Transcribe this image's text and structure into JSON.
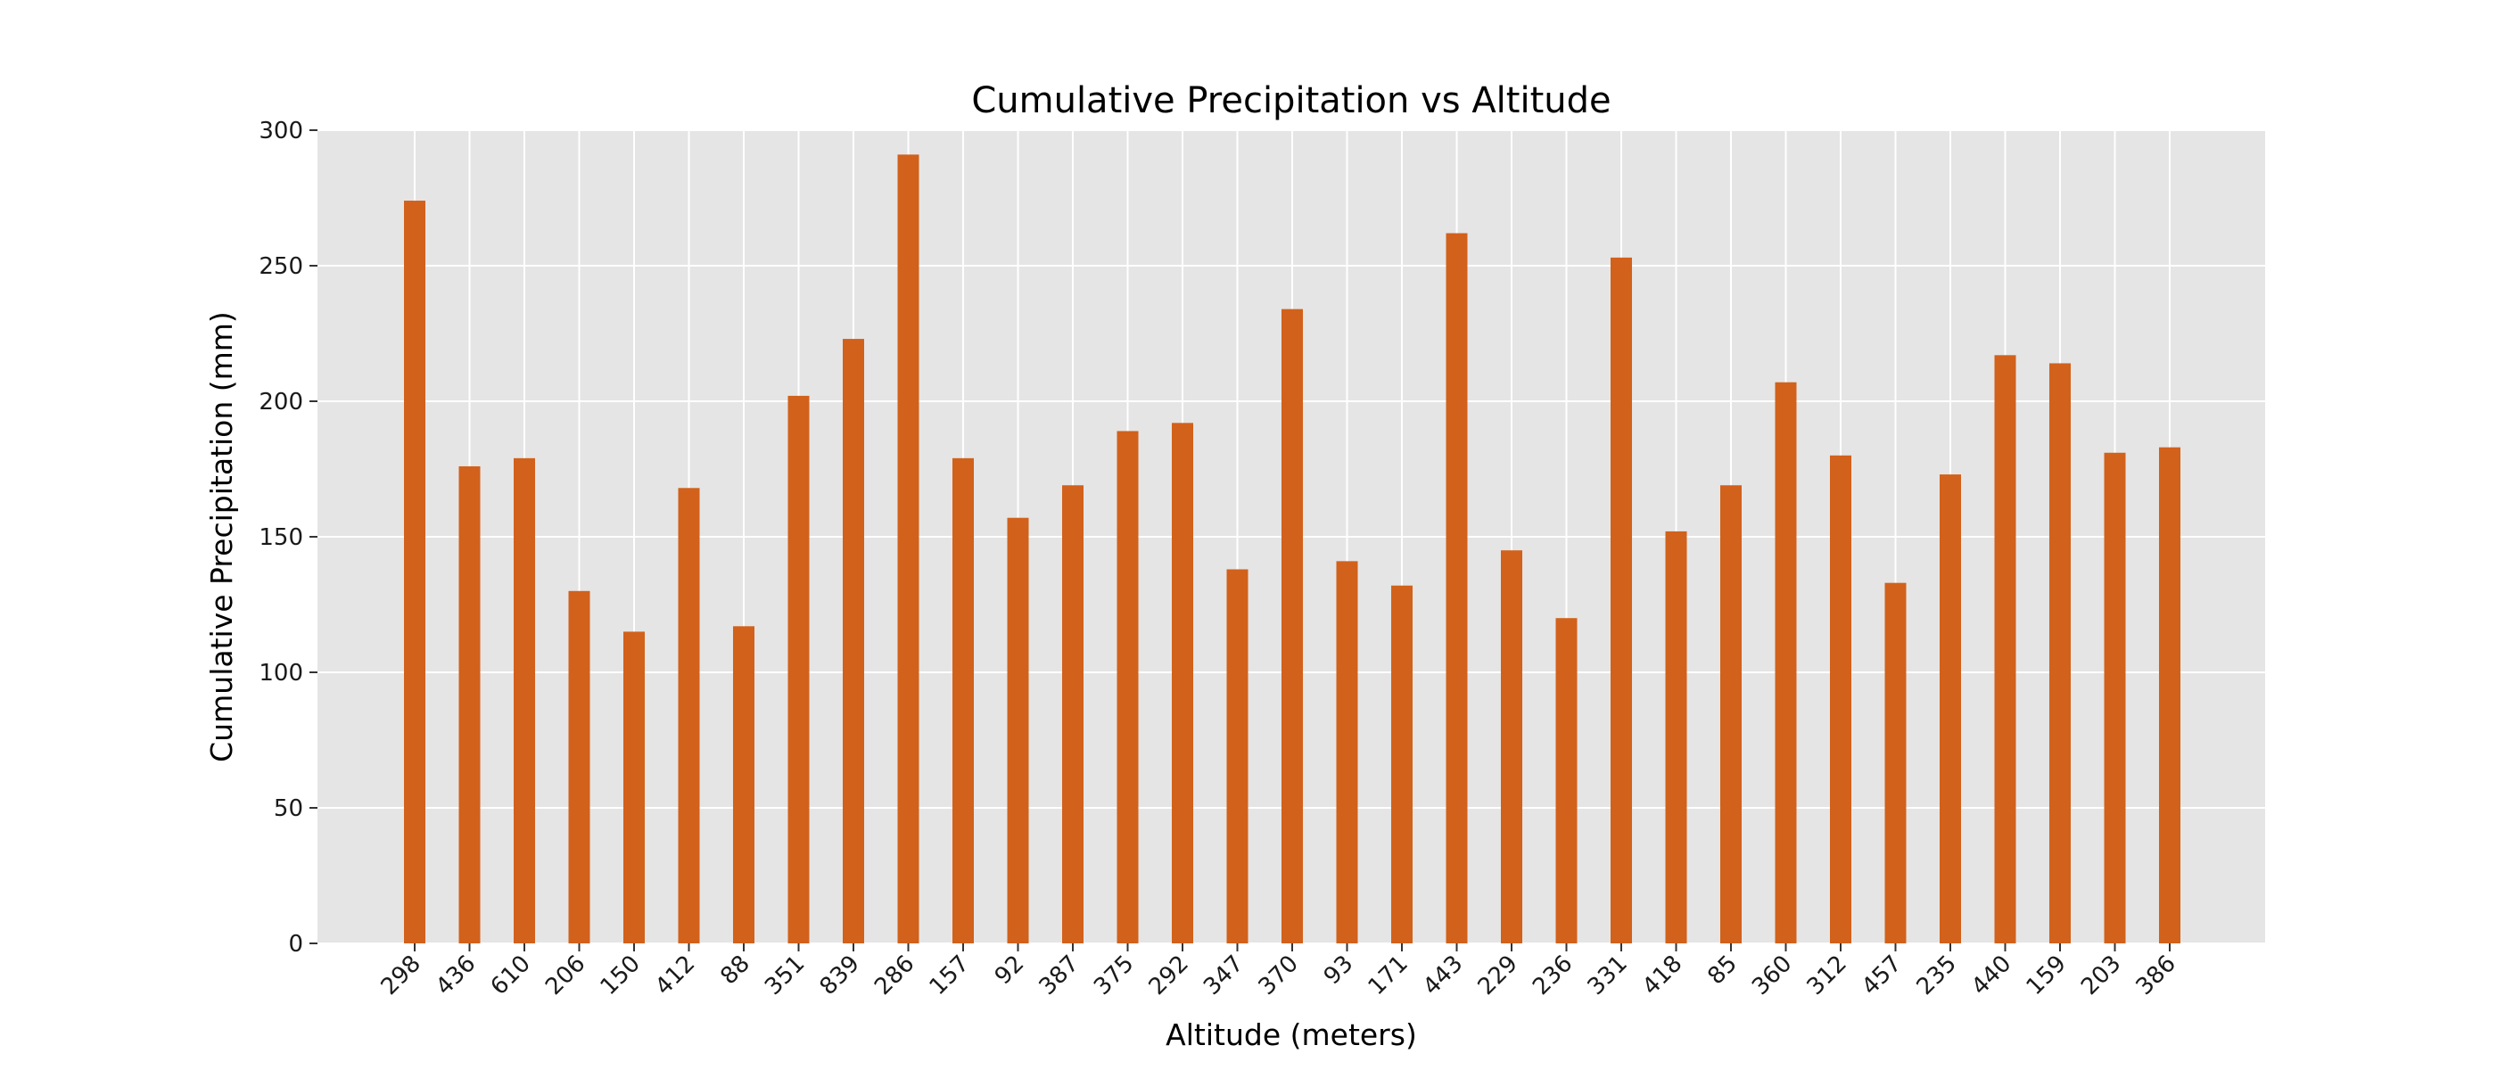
{
  "chart_data": {
    "type": "bar",
    "title": "Cumulative Precipitation vs Altitude",
    "xlabel": "Altitude (meters)",
    "ylabel": "Cumulative Precipitation (mm)",
    "categories": [
      "298",
      "436",
      "610",
      "206",
      "150",
      "412",
      "88",
      "351",
      "839",
      "286",
      "157",
      "92",
      "387",
      "375",
      "292",
      "347",
      "370",
      "93",
      "171",
      "443",
      "229",
      "236",
      "331",
      "418",
      "85",
      "360",
      "312",
      "457",
      "235",
      "440",
      "159",
      "203",
      "386"
    ],
    "values": [
      274,
      176,
      179,
      130,
      115,
      168,
      117,
      202,
      223,
      291,
      179,
      157,
      169,
      189,
      192,
      138,
      234,
      141,
      132,
      262,
      145,
      120,
      253,
      152,
      169,
      207,
      180,
      133,
      173,
      217,
      214,
      181,
      183
    ],
    "ylim": [
      0,
      300
    ],
    "yticks": [
      0,
      50,
      100,
      150,
      200,
      250,
      300
    ],
    "grid": true,
    "legend": "none",
    "colors": {
      "bar": "#d2611b",
      "plot_background": "#e5e5e5",
      "grid": "#ffffff"
    }
  }
}
